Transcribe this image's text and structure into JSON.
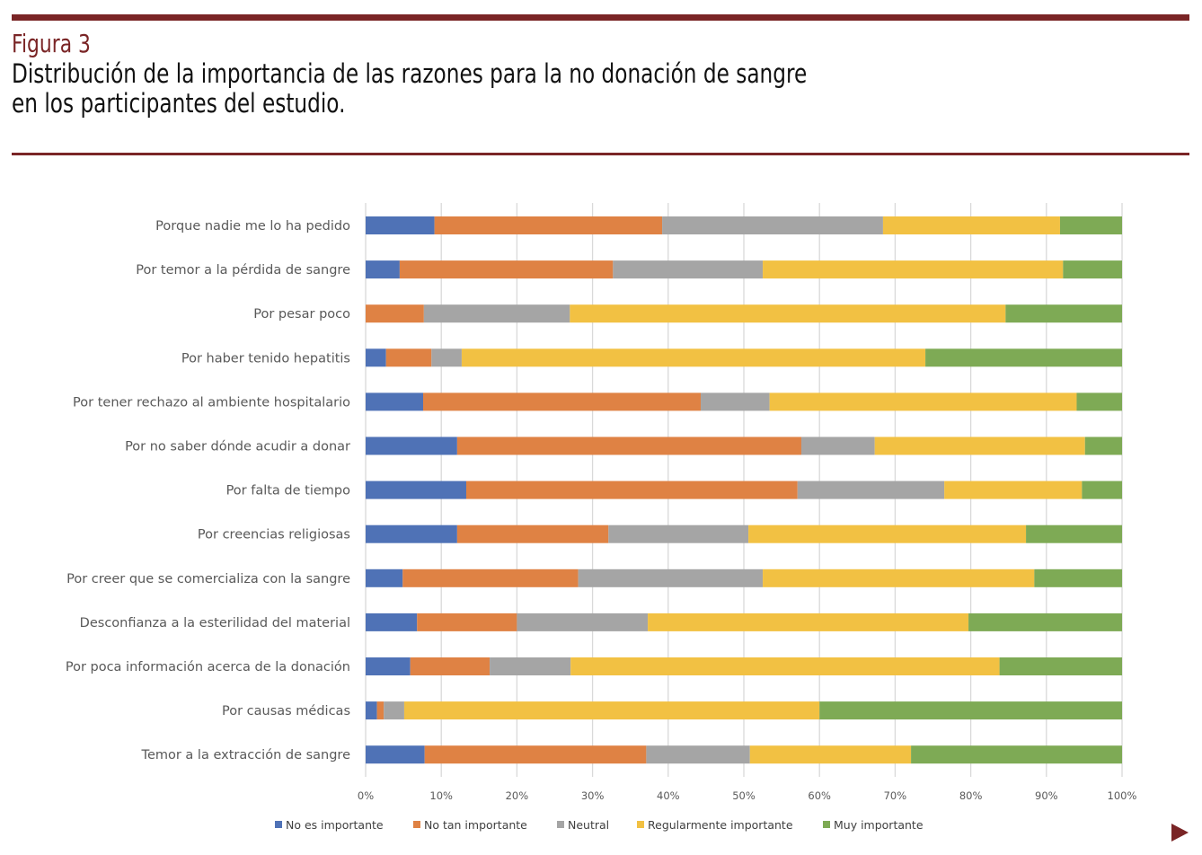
{
  "figure": {
    "label": "Figura 3",
    "title_line1": "Distribución de la importancia de las razones para la no donación de sangre",
    "title_line2": "en los participantes del estudio."
  },
  "colors": {
    "rule": "#7a2526",
    "series": [
      "#4f72b6",
      "#df8244",
      "#a5a5a5",
      "#f2c143",
      "#7eaa55"
    ],
    "grid": "#d9d9d9"
  },
  "nav": {
    "next_icon": "triangle-right"
  },
  "chart_data": {
    "type": "bar",
    "orientation": "horizontal",
    "stacked": "percent",
    "title": "",
    "xlabel": "",
    "ylabel": "",
    "xlim": [
      0,
      100
    ],
    "x_ticks": [
      "0%",
      "10%",
      "20%",
      "30%",
      "40%",
      "50%",
      "60%",
      "70%",
      "80%",
      "90%",
      "100%"
    ],
    "grid": true,
    "legend_position": "bottom",
    "categories": [
      "Porque nadie me lo ha pedido",
      "Por temor a la pérdida de sangre",
      "Por pesar poco",
      "Por haber tenido hepatitis",
      "Por tener rechazo al ambiente hospitalario",
      "Por no saber dónde acudir a donar",
      "Por falta de tiempo",
      "Por creencias religiosas",
      "Por creer que se comercializa con la sangre",
      "Desconfianza a la esterilidad del material",
      "Por poca información acerca de la donación",
      "Por causas médicas",
      "Temor a la extracción de sangre"
    ],
    "series": [
      {
        "name": "No es importante",
        "values": [
          9.1,
          4.5,
          0.0,
          2.7,
          7.6,
          12.1,
          13.3,
          12.1,
          4.9,
          6.8,
          5.9,
          1.5,
          7.8
        ]
      },
      {
        "name": "No tan importante",
        "values": [
          30.1,
          28.2,
          7.7,
          6.0,
          36.7,
          45.5,
          43.8,
          20.0,
          23.2,
          13.2,
          10.5,
          0.9,
          29.3
        ]
      },
      {
        "name": "Neutral",
        "values": [
          29.2,
          19.8,
          19.3,
          4.0,
          9.1,
          9.7,
          19.4,
          18.5,
          24.4,
          17.3,
          10.7,
          2.7,
          13.7
        ]
      },
      {
        "name": "Regularmente importante",
        "values": [
          23.4,
          39.7,
          57.6,
          61.3,
          40.6,
          27.8,
          18.2,
          36.7,
          35.9,
          42.4,
          56.7,
          54.9,
          21.3
        ]
      },
      {
        "name": "Muy importante",
        "values": [
          8.2,
          7.8,
          15.4,
          26.0,
          6.0,
          4.9,
          5.3,
          12.7,
          11.6,
          20.3,
          16.2,
          40.0,
          27.9
        ]
      }
    ]
  }
}
